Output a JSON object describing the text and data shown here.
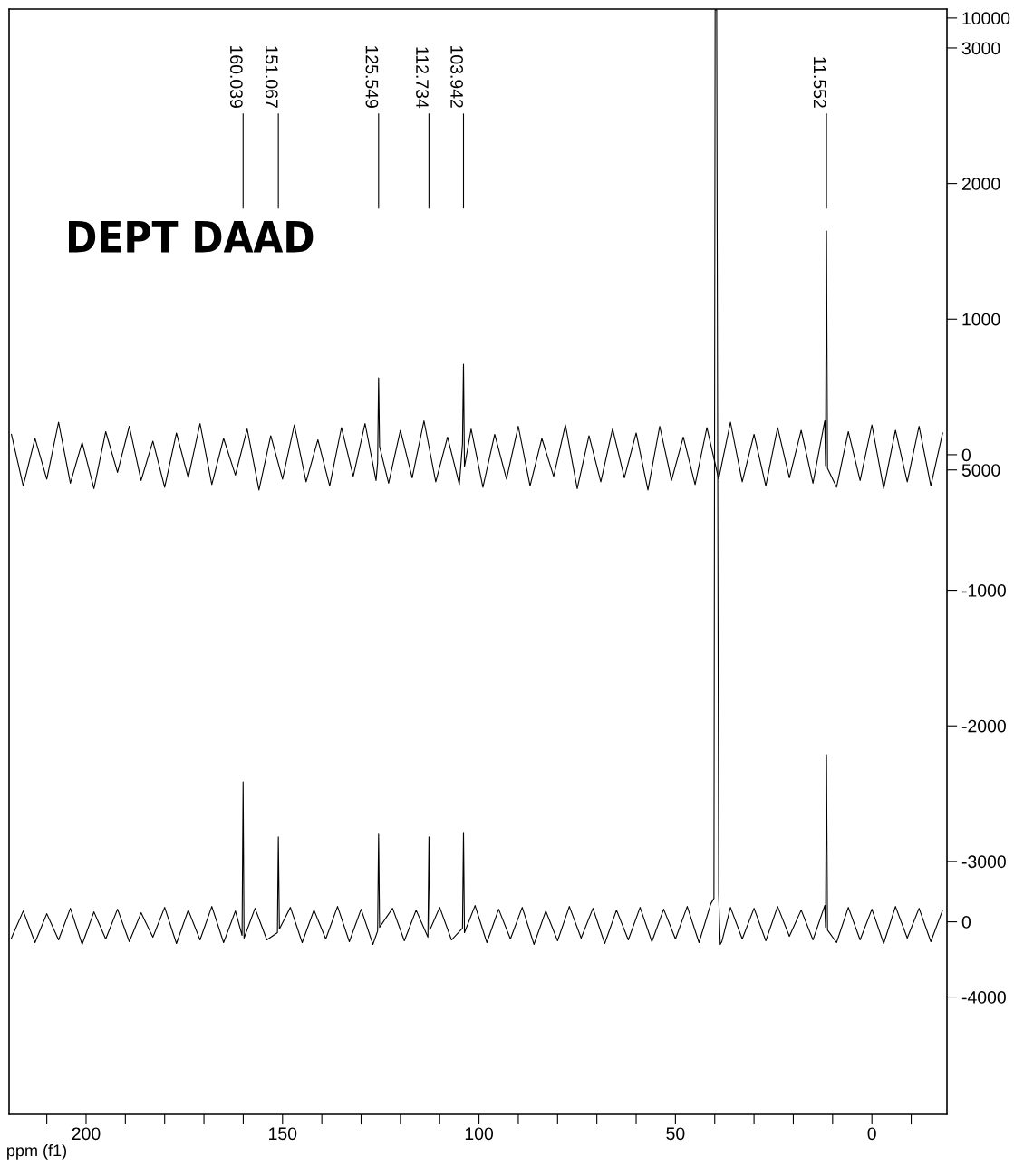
{
  "chart_data": {
    "type": "line",
    "xlabel": "ppm (f1)",
    "annotations": [
      "DEPT DAAD",
      {
        "text": "160.039",
        "x": 160.039
      },
      {
        "text": "151.067",
        "x": 151.067
      },
      {
        "text": "125.549",
        "x": 125.549
      },
      {
        "text": "112.734",
        "x": 112.734
      },
      {
        "text": "103.942",
        "x": 103.942
      },
      {
        "text": "11.552",
        "x": 11.552
      }
    ],
    "xlim": [
      219.6,
      -19.1
    ],
    "xticks": [
      {
        "value": 210,
        "label": null
      },
      200,
      {
        "value": 190,
        "label": null
      },
      {
        "value": 180,
        "label": null
      },
      {
        "value": 170,
        "label": null
      },
      {
        "value": 160,
        "label": null
      },
      150,
      {
        "value": 140,
        "label": null
      },
      {
        "value": 130,
        "label": null
      },
      {
        "value": 120,
        "label": null
      },
      {
        "value": 110,
        "label": null
      },
      100,
      {
        "value": 90,
        "label": null
      },
      {
        "value": 80,
        "label": null
      },
      {
        "value": 70,
        "label": null
      },
      {
        "value": 60,
        "label": null
      },
      50,
      {
        "value": 40,
        "label": null
      },
      {
        "value": 30,
        "label": null
      },
      {
        "value": 20,
        "label": null
      },
      {
        "value": 10,
        "label": null
      },
      0,
      {
        "value": -10,
        "label": null
      }
    ],
    "ylim": [
      -4865,
      3287
    ],
    "yticks": [
      -4000,
      -3000,
      -2000,
      -1000,
      0,
      1000,
      2000,
      3000
    ],
    "y2lim": [
      -2129,
      10099
    ],
    "y2ticks": [
      0,
      5000,
      10000
    ],
    "grid": false,
    "marker": "none",
    "line_style": "solid",
    "series": [
      {
        "color": "#000000",
        "axis": "y",
        "x": [
          219,
          216,
          213,
          210,
          207,
          204,
          201,
          198,
          195,
          192,
          189,
          186,
          183,
          180,
          177,
          174,
          171,
          168,
          165,
          162,
          159,
          156,
          153,
          150,
          147,
          144,
          141,
          138,
          135,
          132,
          129,
          126.2,
          125.8,
          125.549,
          125.3,
          123,
          120,
          117,
          114,
          111,
          108,
          105,
          104.2,
          103.942,
          103.7,
          102,
          99,
          96,
          93,
          90,
          87,
          84,
          81,
          78,
          75,
          72,
          69,
          66,
          63,
          60,
          57,
          54,
          51,
          48,
          45,
          42,
          39,
          36,
          33,
          30,
          27,
          24,
          21,
          18,
          15,
          12,
          11.8,
          11.552,
          11.3,
          9,
          6,
          3,
          0,
          -3,
          -6,
          -9,
          -12,
          -15,
          -18
        ],
        "values": [
          150,
          -230,
          120,
          -180,
          240,
          -210,
          90,
          -250,
          170,
          -130,
          210,
          -190,
          100,
          -240,
          160,
          -170,
          230,
          -220,
          120,
          -150,
          190,
          -260,
          140,
          -180,
          220,
          -200,
          110,
          -230,
          200,
          -160,
          230,
          -190,
          -60,
          567,
          60,
          -210,
          180,
          -170,
          250,
          -200,
          130,
          -220,
          80,
          667,
          -90,
          190,
          -240,
          150,
          -180,
          210,
          -230,
          120,
          -160,
          220,
          -250,
          140,
          -200,
          190,
          -170,
          160,
          -260,
          210,
          -190,
          130,
          -220,
          200,
          -180,
          240,
          -200,
          150,
          -230,
          200,
          -170,
          180,
          -210,
          250,
          -80,
          1650,
          -100,
          -240,
          170,
          -190,
          220,
          -250,
          180,
          -200,
          210,
          -230,
          160
        ]
      },
      {
        "color": "#000000",
        "axis": "y2",
        "x": [
          219,
          216,
          213,
          210,
          207,
          204,
          201,
          198,
          195,
          192,
          189,
          186,
          183,
          180,
          177,
          174,
          171,
          168,
          165,
          162,
          160.3,
          160.039,
          159.8,
          157,
          154,
          151.3,
          151.067,
          150.8,
          148,
          145,
          142,
          139,
          136,
          133,
          130,
          127,
          125.8,
          125.549,
          125.3,
          122,
          119,
          116,
          113,
          112.734,
          112.5,
          110,
          107,
          104.2,
          103.942,
          103.7,
          101,
          98,
          95,
          92,
          89,
          86,
          83,
          80,
          77,
          74,
          71,
          68,
          65,
          62,
          59,
          56,
          53,
          50,
          47,
          44,
          41,
          40.2,
          39.9,
          39.5,
          39.0,
          38.6,
          38.2,
          36,
          33,
          30,
          27,
          24,
          21,
          18,
          15,
          12,
          11.8,
          11.552,
          11.3,
          9,
          6,
          3,
          0,
          -3,
          -6,
          -9,
          -12,
          -15,
          -18
        ],
        "values": [
          -180,
          120,
          -230,
          90,
          -200,
          150,
          -250,
          110,
          -190,
          140,
          -220,
          100,
          -170,
          160,
          -240,
          130,
          -200,
          170,
          -230,
          120,
          -150,
          1550,
          -180,
          150,
          -200,
          -120,
          940,
          -80,
          160,
          -230,
          130,
          -190,
          170,
          -220,
          140,
          -250,
          -100,
          970,
          -60,
          150,
          -210,
          130,
          -170,
          940,
          -90,
          160,
          -200,
          -70,
          990,
          -120,
          180,
          -230,
          140,
          -190,
          160,
          -250,
          120,
          -210,
          170,
          -180,
          150,
          -240,
          130,
          -200,
          160,
          -220,
          140,
          -190,
          170,
          -230,
          200,
          260,
          10090,
          10090,
          300,
          -250,
          -220,
          160,
          -190,
          150,
          -210,
          170,
          -160,
          130,
          -200,
          180,
          -60,
          1850,
          -90,
          -230,
          160,
          -200,
          140,
          -240,
          170,
          -180,
          150,
          -220,
          130
        ]
      }
    ]
  }
}
